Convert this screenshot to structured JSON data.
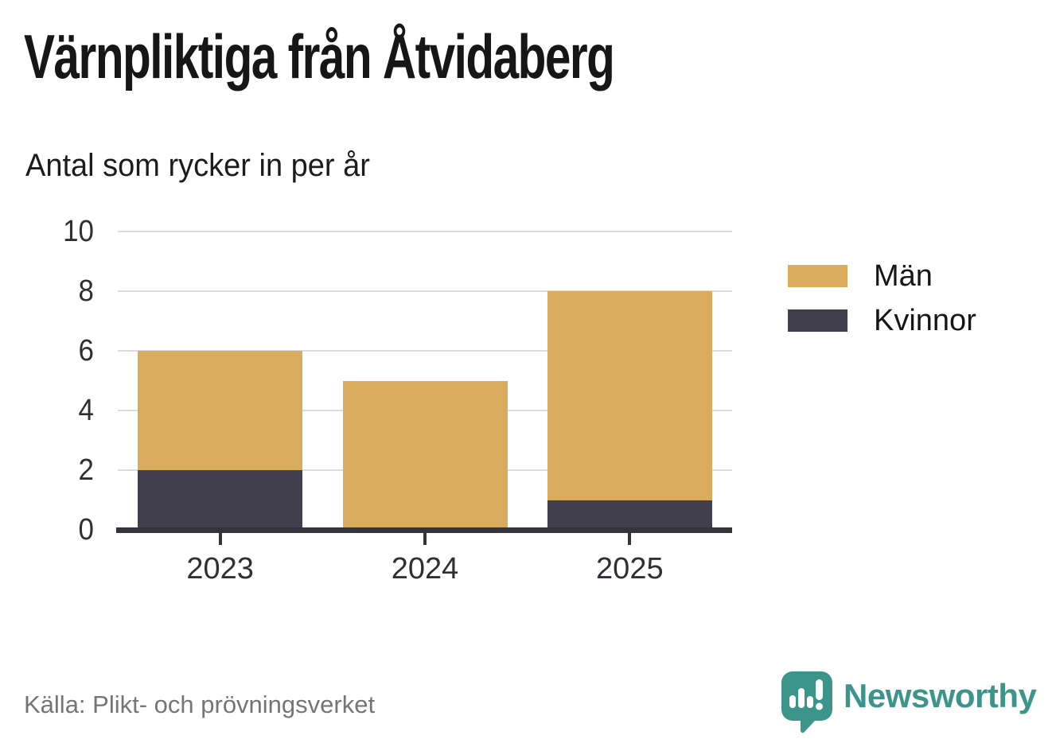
{
  "header": {
    "title": "Värnpliktiga från Åtvidaberg",
    "subtitle": "Antal som rycker in per år"
  },
  "chart_data": {
    "type": "bar",
    "stacked": true,
    "title": "Värnpliktiga från Åtvidaberg",
    "subtitle": "Antal som rycker in per år",
    "categories": [
      "2023",
      "2024",
      "2025"
    ],
    "series": [
      {
        "name": "Män",
        "color": "#d9ab5c",
        "values": [
          4,
          5,
          7
        ]
      },
      {
        "name": "Kvinnor",
        "color": "#413f4d",
        "values": [
          2,
          0,
          1
        ]
      }
    ],
    "stack_totals": [
      6,
      5,
      8
    ],
    "xlabel": "",
    "ylabel": "",
    "ylim": [
      0,
      10
    ],
    "yticks": [
      0,
      2,
      4,
      6,
      8,
      10
    ],
    "grid": true,
    "legend_position": "right"
  },
  "legend": {
    "items": [
      {
        "label": "Män",
        "color": "#d9ab5c"
      },
      {
        "label": "Kvinnor",
        "color": "#413f4d"
      }
    ]
  },
  "footer": {
    "source": "Källa: Plikt- och prövningsverket",
    "brand": "Newsworthy"
  },
  "colors": {
    "man_gold": "#d9ab5c",
    "kvinnor_dark": "#413f4d",
    "axis": "#35343c",
    "gridline": "#dcdcdc",
    "brand_teal": "#3d948b",
    "text": "#161616",
    "muted_text": "#757575"
  }
}
